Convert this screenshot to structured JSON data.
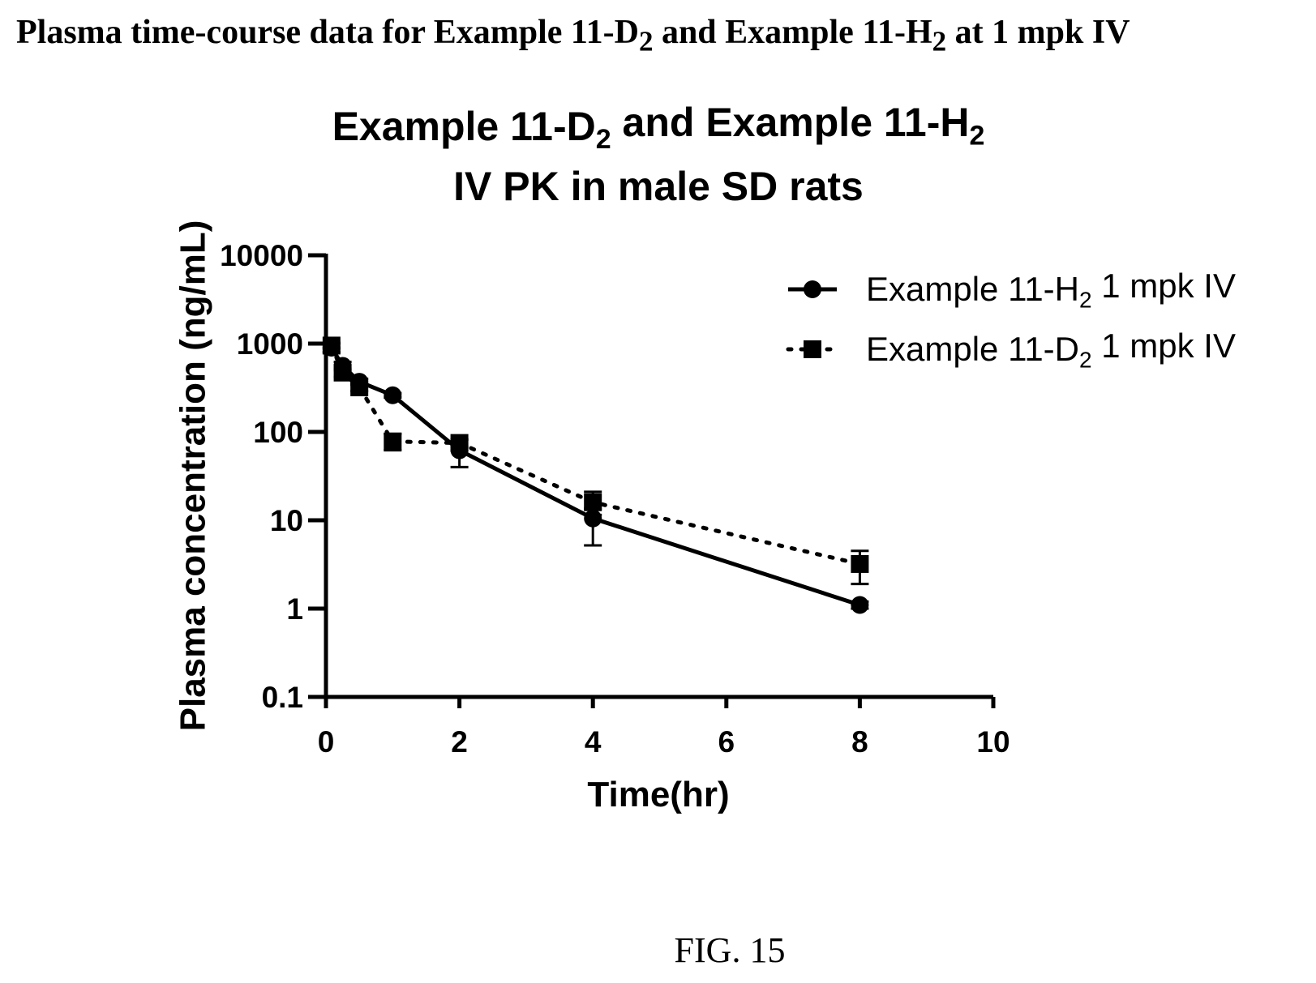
{
  "page": {
    "heading": {
      "before": "Plasma time-course data for Example 11-D",
      "sub1": "2",
      "middle": " and Example 11-H",
      "sub2": "2",
      "after": " at 1 mpk IV"
    },
    "caption": "FIG. 15"
  },
  "chart_data": {
    "type": "line",
    "title_lines": [
      [
        "Example 11-D",
        {
          "sub": "2"
        },
        " and Example 11-H",
        {
          "sub": "2"
        }
      ],
      [
        "IV PK in male SD rats"
      ]
    ],
    "xlabel": "Time(hr)",
    "ylabel": "Plasma concentration (ng/mL)",
    "xlim": [
      0,
      10
    ],
    "ylim": [
      0.1,
      10000
    ],
    "yscale": "log",
    "grid": false,
    "legend_position": "top-right",
    "x_ticks": [
      {
        "value": 0,
        "label": "0"
      },
      {
        "value": 2,
        "label": "2"
      },
      {
        "value": 4,
        "label": "4"
      },
      {
        "value": 6,
        "label": "6"
      },
      {
        "value": 8,
        "label": "8"
      },
      {
        "value": 10,
        "label": "10"
      }
    ],
    "y_ticks": [
      {
        "value": 10000,
        "label": "10000"
      },
      {
        "value": 1000,
        "label": "1000"
      },
      {
        "value": 100,
        "label": "100"
      },
      {
        "value": 10,
        "label": "10"
      },
      {
        "value": 1,
        "label": "1"
      },
      {
        "value": 0.1,
        "label": "0.1"
      }
    ],
    "series": [
      {
        "name": [
          "Example 11-H",
          {
            "sub": "2"
          },
          " 1 mpk IV"
        ],
        "marker": "circle",
        "line_style": "solid",
        "color": "#000000",
        "x": [
          0.083,
          0.25,
          0.5,
          1,
          2,
          4,
          8
        ],
        "y": [
          900,
          560,
          370,
          260,
          62,
          10.5,
          1.1
        ],
        "err_upper": [
          1000,
          620,
          400,
          275,
          82,
          13.5,
          1.2
        ],
        "err_lower": [
          800,
          500,
          340,
          245,
          40,
          5.2,
          1.0
        ]
      },
      {
        "name": [
          "Example 11-D",
          {
            "sub": "2"
          },
          " 1 mpk IV"
        ],
        "marker": "square",
        "line_style": "dotted",
        "color": "#000000",
        "x": [
          0.083,
          0.25,
          0.5,
          1,
          2,
          4,
          8
        ],
        "y": [
          950,
          470,
          320,
          78,
          75,
          16,
          3.2
        ],
        "err_upper": [
          1020,
          520,
          350,
          95,
          82,
          21,
          4.5
        ],
        "err_lower": [
          880,
          420,
          290,
          62,
          68,
          11.5,
          1.9
        ]
      }
    ]
  }
}
